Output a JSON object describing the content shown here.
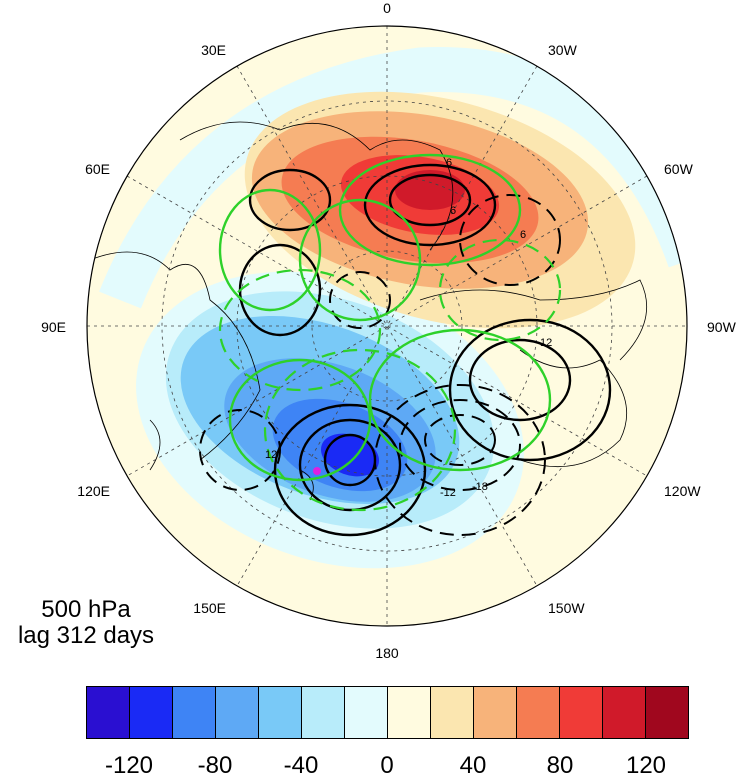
{
  "panel": {
    "level": "500 hPa",
    "lag": "lag 312 days"
  },
  "longitude_labels": {
    "top": "0",
    "tr": "30W",
    "rt": "60W",
    "right": "90W",
    "rb": "120W",
    "br": "150W",
    "bottom": "180",
    "bl": "150E",
    "lb": "120E",
    "left": "90E",
    "lt": "60E",
    "tl": "30E"
  },
  "colorbar": {
    "labels": [
      "-120",
      "-80",
      "-40",
      "0",
      "40",
      "80",
      "120"
    ],
    "colors": [
      "#2a0fd1",
      "#1a2af5",
      "#3e84f5",
      "#5ea9f5",
      "#79c9f7",
      "#b8ecfa",
      "#e3fbfd",
      "#fffbe0",
      "#fbe6b0",
      "#f7b37a",
      "#f57c52",
      "#f03b37",
      "#d01a2a",
      "#a0071e"
    ]
  },
  "map": {
    "projection": "north-polar-stereographic",
    "shaded_field": "anomaly",
    "contour_colors": {
      "black": "#000000",
      "green": "#2ed12a"
    },
    "marker_color": "#e020e0",
    "contour_labels": [
      "6",
      "6",
      "-12",
      "12",
      "-18",
      "6",
      "12"
    ]
  }
}
